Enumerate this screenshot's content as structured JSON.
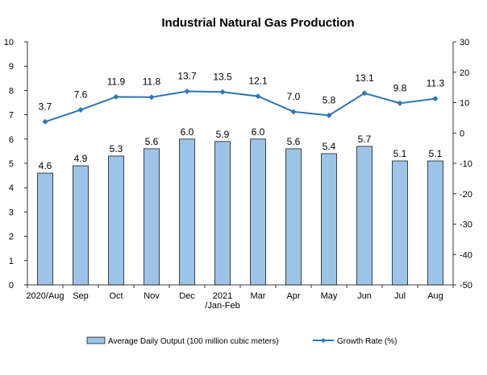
{
  "chart_data": {
    "type": "bar+line",
    "title": "Industrial Natural Gas Production",
    "categories": [
      "2020/Aug",
      "Sep",
      "Oct",
      "Nov",
      "Dec",
      "2021\n/Jan-Feb",
      "Mar",
      "Apr",
      "May",
      "Jun",
      "Jul",
      "Aug"
    ],
    "series": [
      {
        "name": "Average Daily Output (100 million cubic meters)",
        "type": "bar",
        "axis": "left",
        "color": "#9DC3E6",
        "values": [
          4.6,
          4.9,
          5.3,
          5.6,
          6.0,
          5.9,
          6.0,
          5.6,
          5.4,
          5.7,
          5.1,
          5.1
        ],
        "labels": [
          "4.6",
          "4.9",
          "5.3",
          "5.6",
          "6.0",
          "5.9",
          "6.0",
          "5.6",
          "5.4",
          "5.7",
          "5.1",
          "5.1"
        ]
      },
      {
        "name": "Growth Rate (%)",
        "type": "line",
        "axis": "right",
        "color": "#2E75B6",
        "values": [
          3.7,
          7.6,
          11.9,
          11.8,
          13.7,
          13.5,
          12.1,
          7.0,
          5.8,
          13.1,
          9.8,
          11.3
        ],
        "labels": [
          "3.7",
          "7.6",
          "11.9",
          "11.8",
          "13.7",
          "13.5",
          "12.1",
          "7.0",
          "5.8",
          "13.1",
          "9.8",
          "11.3"
        ]
      }
    ],
    "y_left": {
      "min": 0,
      "max": 10,
      "step": 1,
      "ticks": [
        "0",
        "1",
        "2",
        "3",
        "4",
        "5",
        "6",
        "7",
        "8",
        "9",
        "10"
      ]
    },
    "y_right": {
      "min": -50,
      "max": 30,
      "step": 10,
      "ticks": [
        "-50",
        "-40",
        "-30",
        "-20",
        "-10",
        "0",
        "10",
        "20",
        "30"
      ]
    },
    "grid": false,
    "legend_position": "bottom"
  }
}
